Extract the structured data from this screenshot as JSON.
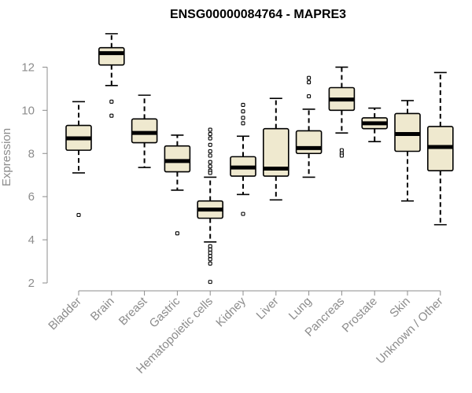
{
  "chart_data": {
    "type": "box",
    "title": "ENSG00000084764 - MAPRE3",
    "ylabel": "Expression",
    "xlabel": "",
    "ylim": [
      2,
      13.8
    ],
    "yticks": [
      2,
      4,
      6,
      8,
      10,
      12
    ],
    "box_fill": "#efe9cf",
    "box_stroke": "#000000",
    "median_color": "#000000",
    "axis_color": "#8c8c8c",
    "categories": [
      "Bladder",
      "Brain",
      "Breast",
      "Gastric",
      "Hematopoietic cells",
      "Kidney",
      "Liver",
      "Lung",
      "Pancreas",
      "Prostate",
      "Skin",
      "Unknown / Other"
    ],
    "boxes": [
      {
        "label": "Bladder",
        "min": 7.1,
        "q1": 8.15,
        "median": 8.7,
        "q3": 9.3,
        "max": 10.4,
        "outliers": [
          5.15
        ]
      },
      {
        "label": "Brain",
        "min": 11.15,
        "q1": 12.1,
        "median": 12.65,
        "q3": 12.9,
        "max": 13.55,
        "outliers": [
          10.4,
          9.75
        ]
      },
      {
        "label": "Breast",
        "min": 7.35,
        "q1": 8.5,
        "median": 8.95,
        "q3": 9.6,
        "max": 10.7,
        "outliers": []
      },
      {
        "label": "Gastric",
        "min": 6.3,
        "q1": 7.15,
        "median": 7.65,
        "q3": 8.35,
        "max": 8.85,
        "outliers": [
          4.3
        ]
      },
      {
        "label": "Hematopoietic cells",
        "min": 3.9,
        "q1": 5.0,
        "median": 5.4,
        "q3": 5.8,
        "max": 6.9,
        "outliers": [
          9.1,
          8.9,
          8.7,
          8.4,
          8.1,
          7.9,
          7.6,
          7.4,
          7.2,
          7.1,
          3.7,
          3.55,
          3.4,
          3.25,
          3.1,
          2.9,
          2.05
        ]
      },
      {
        "label": "Kidney",
        "min": 6.1,
        "q1": 6.95,
        "median": 7.35,
        "q3": 7.85,
        "max": 8.8,
        "outliers": [
          10.25,
          9.95,
          9.65,
          9.4,
          5.2
        ]
      },
      {
        "label": "Liver",
        "min": 5.85,
        "q1": 6.95,
        "median": 7.3,
        "q3": 9.15,
        "max": 10.55,
        "outliers": []
      },
      {
        "label": "Lung",
        "min": 6.9,
        "q1": 8.0,
        "median": 8.25,
        "q3": 9.05,
        "max": 10.05,
        "outliers": [
          11.5,
          11.3,
          10.65
        ]
      },
      {
        "label": "Pancreas",
        "min": 8.95,
        "q1": 10.0,
        "median": 10.5,
        "q3": 11.05,
        "max": 12.0,
        "outliers": [
          8.15,
          8.0,
          7.9
        ]
      },
      {
        "label": "Prostate",
        "min": 8.55,
        "q1": 9.15,
        "median": 9.4,
        "q3": 9.65,
        "max": 10.1,
        "outliers": []
      },
      {
        "label": "Skin",
        "min": 5.8,
        "q1": 8.1,
        "median": 8.9,
        "q3": 9.85,
        "max": 10.45,
        "outliers": []
      },
      {
        "label": "Unknown / Other",
        "min": 4.7,
        "q1": 7.2,
        "median": 8.3,
        "q3": 9.25,
        "max": 11.75,
        "outliers": []
      }
    ]
  }
}
